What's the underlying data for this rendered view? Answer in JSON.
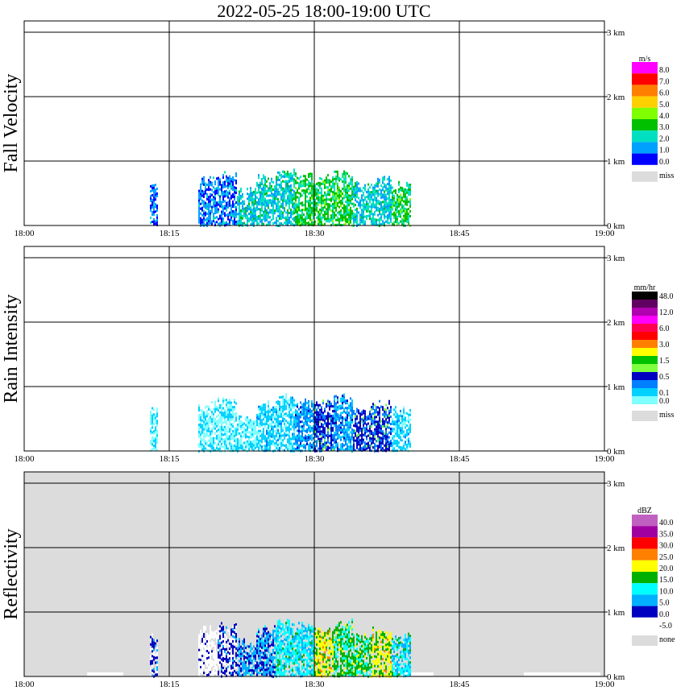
{
  "title": "2022-05-25   18:00-19:00 UTC",
  "x_ticks": [
    "18:00",
    "18:15",
    "18:30",
    "18:45",
    "19:00"
  ],
  "y_ticks": [
    "0 km",
    "1 km",
    "2 km",
    "3 km"
  ],
  "panels": [
    {
      "id": "fall-velocity",
      "ylabel": "Fall Velocity",
      "unit": "m/s",
      "background": "#ffffff",
      "scale": [
        {
          "label": "8.0",
          "color": "#ff00ff"
        },
        {
          "label": "7.0",
          "color": "#ff0000"
        },
        {
          "label": "6.0",
          "color": "#ff7f00"
        },
        {
          "label": "5.0",
          "color": "#ffd000"
        },
        {
          "label": "4.0",
          "color": "#7fff00"
        },
        {
          "label": "3.0",
          "color": "#00c000"
        },
        {
          "label": "2.0",
          "color": "#00e0c0"
        },
        {
          "label": "1.0",
          "color": "#00a0ff"
        },
        {
          "label": "0.0",
          "color": "#0000ff"
        }
      ],
      "missing_label": "miss",
      "missing_color": "#dcdcdc"
    },
    {
      "id": "rain-intensity",
      "ylabel": "Rain Intensity",
      "unit": "mm/hr",
      "background": "#ffffff",
      "scale": [
        {
          "label": "48.0",
          "color": "#000000"
        },
        {
          "label": "",
          "color": "#600060"
        },
        {
          "label": "12.0",
          "color": "#b000b0"
        },
        {
          "label": "",
          "color": "#ff00ff"
        },
        {
          "label": "6.0",
          "color": "#ff0050"
        },
        {
          "label": "",
          "color": "#ff0000"
        },
        {
          "label": "3.0",
          "color": "#ff8000"
        },
        {
          "label": "",
          "color": "#ffff00"
        },
        {
          "label": "1.5",
          "color": "#00c000"
        },
        {
          "label": "",
          "color": "#80ff40"
        },
        {
          "label": "0.5",
          "color": "#0000c0"
        },
        {
          "label": "",
          "color": "#0080ff"
        },
        {
          "label": "0.1",
          "color": "#00d0ff"
        },
        {
          "label": "0.0",
          "color": "#80ffff"
        }
      ],
      "missing_label": "miss",
      "missing_color": "#dcdcdc"
    },
    {
      "id": "reflectivity",
      "ylabel": "Reflectivity",
      "unit": "dBZ",
      "background": "#dcdcdc",
      "scale": [
        {
          "label": "40.0",
          "color": "#c060c0"
        },
        {
          "label": "35.0",
          "color": "#a000a0"
        },
        {
          "label": "30.0",
          "color": "#ff0000"
        },
        {
          "label": "25.0",
          "color": "#ff8000"
        },
        {
          "label": "20.0",
          "color": "#ffff00"
        },
        {
          "label": "15.0",
          "color": "#00b000"
        },
        {
          "label": "10.0",
          "color": "#00ffff"
        },
        {
          "label": "5.0",
          "color": "#00b0ff"
        },
        {
          "label": "0.0",
          "color": "#0000c0"
        },
        {
          "label": "-5.0",
          "color": "#ffffff"
        }
      ],
      "missing_label": "none",
      "missing_color": "#dcdcdc"
    }
  ],
  "chart_data": {
    "type": "heatmap",
    "title": "2022-05-25   18:00-19:00 UTC",
    "xlabel": "",
    "x_range": [
      "18:00",
      "19:00"
    ],
    "y_range_km": [
      0,
      3.2
    ],
    "grid": true,
    "note_series": [
      "Fall Velocity",
      "Rain Intensity",
      "Reflectivity"
    ],
    "echo_columns": [
      {
        "time": "18:13",
        "top_km": 0.7,
        "fv": 1,
        "ri": 0,
        "dbz": 1
      },
      {
        "time": "18:18",
        "top_km": 0.8,
        "fv": 1,
        "ri": 0,
        "dbz": 0
      },
      {
        "time": "18:20",
        "top_km": 0.85,
        "fv": 1,
        "ri": 0,
        "dbz": 1
      },
      {
        "time": "18:22",
        "top_km": 0.6,
        "fv": 2,
        "ri": 0,
        "dbz": 2
      },
      {
        "time": "18:24",
        "top_km": 0.8,
        "fv": 2,
        "ri": 1,
        "dbz": 2
      },
      {
        "time": "18:26",
        "top_km": 0.9,
        "fv": 2,
        "ri": 1,
        "dbz": 3
      },
      {
        "time": "18:28",
        "top_km": 0.85,
        "fv": 3,
        "ri": 2,
        "dbz": 3
      },
      {
        "time": "18:30",
        "top_km": 0.8,
        "fv": 3,
        "ri": 3,
        "dbz": 5
      },
      {
        "time": "18:32",
        "top_km": 0.9,
        "fv": 3,
        "ri": 2,
        "dbz": 4
      },
      {
        "time": "18:34",
        "top_km": 0.7,
        "fv": 2,
        "ri": 3,
        "dbz": 4
      },
      {
        "time": "18:36",
        "top_km": 0.8,
        "fv": 2,
        "ri": 3,
        "dbz": 5
      },
      {
        "time": "18:38",
        "top_km": 0.7,
        "fv": 3,
        "ri": 1,
        "dbz": 3
      }
    ]
  }
}
